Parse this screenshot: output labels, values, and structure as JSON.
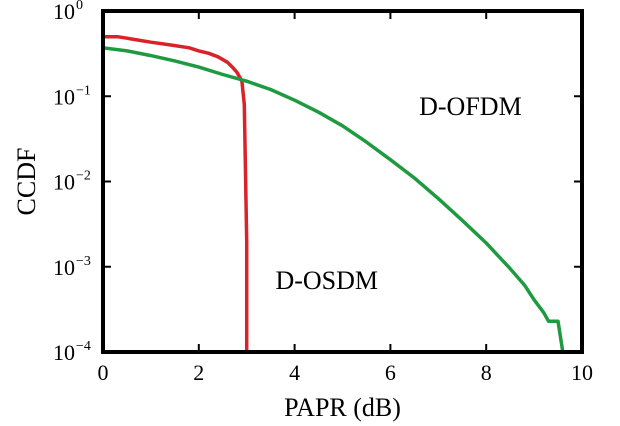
{
  "chart_data": {
    "type": "line",
    "xlabel": "PAPR (dB)",
    "ylabel": "CCDF",
    "xlim": [
      0,
      10
    ],
    "ylim": [
      0.0001,
      1
    ],
    "yscale": "log",
    "x_ticks": [
      "0",
      "2",
      "4",
      "6",
      "8",
      "10"
    ],
    "y_ticks": [
      {
        "base": "10",
        "exp": "0"
      },
      {
        "base": "10",
        "exp": "−1"
      },
      {
        "base": "10",
        "exp": "−2"
      },
      {
        "base": "10",
        "exp": "−3"
      },
      {
        "base": "10",
        "exp": "−4"
      }
    ],
    "grid": false,
    "annotations": [
      {
        "text": "D-OFDM",
        "x": 6.6,
        "y": 0.06
      },
      {
        "text": "D-OSDM",
        "x": 3.6,
        "y": 0.00055
      }
    ],
    "series": [
      {
        "color": "#d8232a",
        "x": [
          0,
          0.3,
          0.5,
          0.8,
          1.0,
          1.4,
          1.8,
          2.0,
          2.2,
          2.4,
          2.6,
          2.7,
          2.8,
          2.9,
          2.95,
          3.0,
          3.0
        ],
        "y": [
          0.5,
          0.5,
          0.48,
          0.45,
          0.43,
          0.4,
          0.37,
          0.34,
          0.32,
          0.29,
          0.25,
          0.22,
          0.19,
          0.15,
          0.08,
          0.002,
          0.0001
        ]
      },
      {
        "color": "#1e9a40",
        "x": [
          0,
          0.5,
          1.0,
          1.5,
          2.0,
          2.5,
          3.0,
          3.5,
          4.0,
          4.5,
          5.0,
          5.5,
          6.0,
          6.5,
          7.0,
          7.5,
          8.0,
          8.5,
          8.8,
          9.0,
          9.2,
          9.3,
          9.5,
          9.6
        ],
        "y": [
          0.37,
          0.34,
          0.3,
          0.26,
          0.22,
          0.18,
          0.15,
          0.12,
          0.09,
          0.065,
          0.045,
          0.029,
          0.018,
          0.011,
          0.0063,
          0.0035,
          0.0019,
          0.00095,
          0.00061,
          0.00041,
          0.00029,
          0.00023,
          0.00023,
          0.0001
        ]
      }
    ]
  }
}
